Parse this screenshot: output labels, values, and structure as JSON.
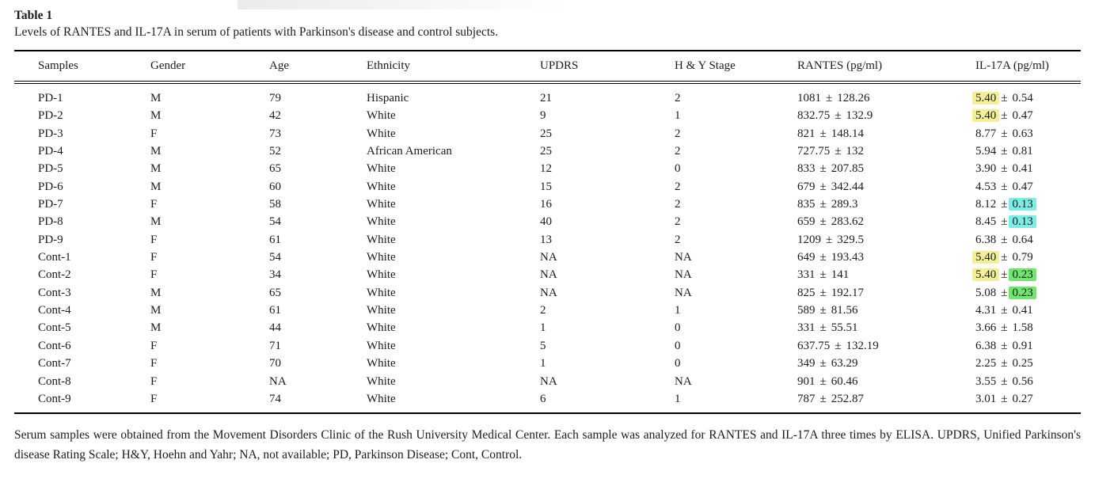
{
  "title": "Table 1",
  "caption": "Levels of RANTES and IL-17A in serum of patients with Parkinson's disease and control subjects.",
  "plus_minus": "±",
  "columns": [
    "Samples",
    "Gender",
    "Age",
    "Ethnicity",
    "UPDRS",
    "H & Y Stage",
    "RANTES (pg/ml)",
    "IL-17A (pg/ml)"
  ],
  "highlight_colors": {
    "yellow": "#f4ef97",
    "cyan": "#7cece6",
    "green": "#6fe66d"
  },
  "rows": [
    {
      "sample": "PD-1",
      "gender": "M",
      "age": "79",
      "ethnicity": "Hispanic",
      "updrs": "21",
      "hy": "2",
      "rantes_mean": "1081",
      "rantes_sd": "128.26",
      "il17a_mean": "5.40",
      "il17a_sd": "0.54",
      "il17a_mean_hl": "yellow",
      "il17a_sd_hl": ""
    },
    {
      "sample": "PD-2",
      "gender": "M",
      "age": "42",
      "ethnicity": "White",
      "updrs": "9",
      "hy": "1",
      "rantes_mean": "832.75",
      "rantes_sd": "132.9",
      "il17a_mean": "5.40",
      "il17a_sd": "0.47",
      "il17a_mean_hl": "yellow",
      "il17a_sd_hl": ""
    },
    {
      "sample": "PD-3",
      "gender": "F",
      "age": "73",
      "ethnicity": "White",
      "updrs": "25",
      "hy": "2",
      "rantes_mean": "821",
      "rantes_sd": "148.14",
      "il17a_mean": "8.77",
      "il17a_sd": "0.63",
      "il17a_mean_hl": "",
      "il17a_sd_hl": ""
    },
    {
      "sample": "PD-4",
      "gender": "M",
      "age": "52",
      "ethnicity": "African American",
      "updrs": "25",
      "hy": "2",
      "rantes_mean": "727.75",
      "rantes_sd": "132",
      "il17a_mean": "5.94",
      "il17a_sd": "0.81",
      "il17a_mean_hl": "",
      "il17a_sd_hl": ""
    },
    {
      "sample": "PD-5",
      "gender": "M",
      "age": "65",
      "ethnicity": "White",
      "updrs": "12",
      "hy": "0",
      "rantes_mean": "833",
      "rantes_sd": "207.85",
      "il17a_mean": "3.90",
      "il17a_sd": "0.41",
      "il17a_mean_hl": "",
      "il17a_sd_hl": ""
    },
    {
      "sample": "PD-6",
      "gender": "M",
      "age": "60",
      "ethnicity": "White",
      "updrs": "15",
      "hy": "2",
      "rantes_mean": "679",
      "rantes_sd": "342.44",
      "il17a_mean": "4.53",
      "il17a_sd": "0.47",
      "il17a_mean_hl": "",
      "il17a_sd_hl": ""
    },
    {
      "sample": "PD-7",
      "gender": "F",
      "age": "58",
      "ethnicity": "White",
      "updrs": "16",
      "hy": "2",
      "rantes_mean": "835",
      "rantes_sd": "289.3",
      "il17a_mean": "8.12",
      "il17a_sd": "0.13",
      "il17a_mean_hl": "",
      "il17a_sd_hl": "cyan"
    },
    {
      "sample": "PD-8",
      "gender": "M",
      "age": "54",
      "ethnicity": "White",
      "updrs": "40",
      "hy": "2",
      "rantes_mean": "659",
      "rantes_sd": "283.62",
      "il17a_mean": "8.45",
      "il17a_sd": "0.13",
      "il17a_mean_hl": "",
      "il17a_sd_hl": "cyan"
    },
    {
      "sample": "PD-9",
      "gender": "F",
      "age": "61",
      "ethnicity": "White",
      "updrs": "13",
      "hy": "2",
      "rantes_mean": "1209",
      "rantes_sd": "329.5",
      "il17a_mean": "6.38",
      "il17a_sd": "0.64",
      "il17a_mean_hl": "",
      "il17a_sd_hl": ""
    },
    {
      "sample": "Cont-1",
      "gender": "F",
      "age": "54",
      "ethnicity": "White",
      "updrs": "NA",
      "hy": "NA",
      "rantes_mean": "649",
      "rantes_sd": "193.43",
      "il17a_mean": "5.40",
      "il17a_sd": "0.79",
      "il17a_mean_hl": "yellow",
      "il17a_sd_hl": ""
    },
    {
      "sample": "Cont-2",
      "gender": "F",
      "age": "34",
      "ethnicity": "White",
      "updrs": "NA",
      "hy": "NA",
      "rantes_mean": "331",
      "rantes_sd": "141",
      "il17a_mean": "5.40",
      "il17a_sd": "0.23",
      "il17a_mean_hl": "yellow",
      "il17a_sd_hl": "green"
    },
    {
      "sample": "Cont-3",
      "gender": "M",
      "age": "65",
      "ethnicity": "White",
      "updrs": "NA",
      "hy": "NA",
      "rantes_mean": "825",
      "rantes_sd": "192.17",
      "il17a_mean": "5.08",
      "il17a_sd": "0.23",
      "il17a_mean_hl": "",
      "il17a_sd_hl": "green"
    },
    {
      "sample": "Cont-4",
      "gender": "M",
      "age": "61",
      "ethnicity": "White",
      "updrs": "2",
      "hy": "1",
      "rantes_mean": "589",
      "rantes_sd": "81.56",
      "il17a_mean": "4.31",
      "il17a_sd": "0.41",
      "il17a_mean_hl": "",
      "il17a_sd_hl": ""
    },
    {
      "sample": "Cont-5",
      "gender": "M",
      "age": "44",
      "ethnicity": "White",
      "updrs": "1",
      "hy": "0",
      "rantes_mean": "331",
      "rantes_sd": "55.51",
      "il17a_mean": "3.66",
      "il17a_sd": "1.58",
      "il17a_mean_hl": "",
      "il17a_sd_hl": ""
    },
    {
      "sample": "Cont-6",
      "gender": "F",
      "age": "71",
      "ethnicity": "White",
      "updrs": "5",
      "hy": "0",
      "rantes_mean": "637.75",
      "rantes_sd": "132.19",
      "il17a_mean": "6.38",
      "il17a_sd": "0.91",
      "il17a_mean_hl": "",
      "il17a_sd_hl": ""
    },
    {
      "sample": "Cont-7",
      "gender": "F",
      "age": "70",
      "ethnicity": "White",
      "updrs": "1",
      "hy": "0",
      "rantes_mean": "349",
      "rantes_sd": "63.29",
      "il17a_mean": "2.25",
      "il17a_sd": "0.25",
      "il17a_mean_hl": "",
      "il17a_sd_hl": ""
    },
    {
      "sample": "Cont-8",
      "gender": "F",
      "age": "NA",
      "ethnicity": "White",
      "updrs": "NA",
      "hy": "NA",
      "rantes_mean": "901",
      "rantes_sd": "60.46",
      "il17a_mean": "3.55",
      "il17a_sd": "0.56",
      "il17a_mean_hl": "",
      "il17a_sd_hl": ""
    },
    {
      "sample": "Cont-9",
      "gender": "F",
      "age": "74",
      "ethnicity": "White",
      "updrs": "6",
      "hy": "1",
      "rantes_mean": "787",
      "rantes_sd": "252.87",
      "il17a_mean": "3.01",
      "il17a_sd": "0.27",
      "il17a_mean_hl": "",
      "il17a_sd_hl": ""
    }
  ],
  "footnote": "Serum samples were obtained from the Movement Disorders Clinic of the Rush University Medical Center. Each sample was analyzed for RANTES and IL-17A three times by ELISA. UPDRS, Unified Parkinson's disease Rating Scale; H&Y, Hoehn and Yahr; NA, not available; PD, Parkinson Disease; Cont, Control."
}
